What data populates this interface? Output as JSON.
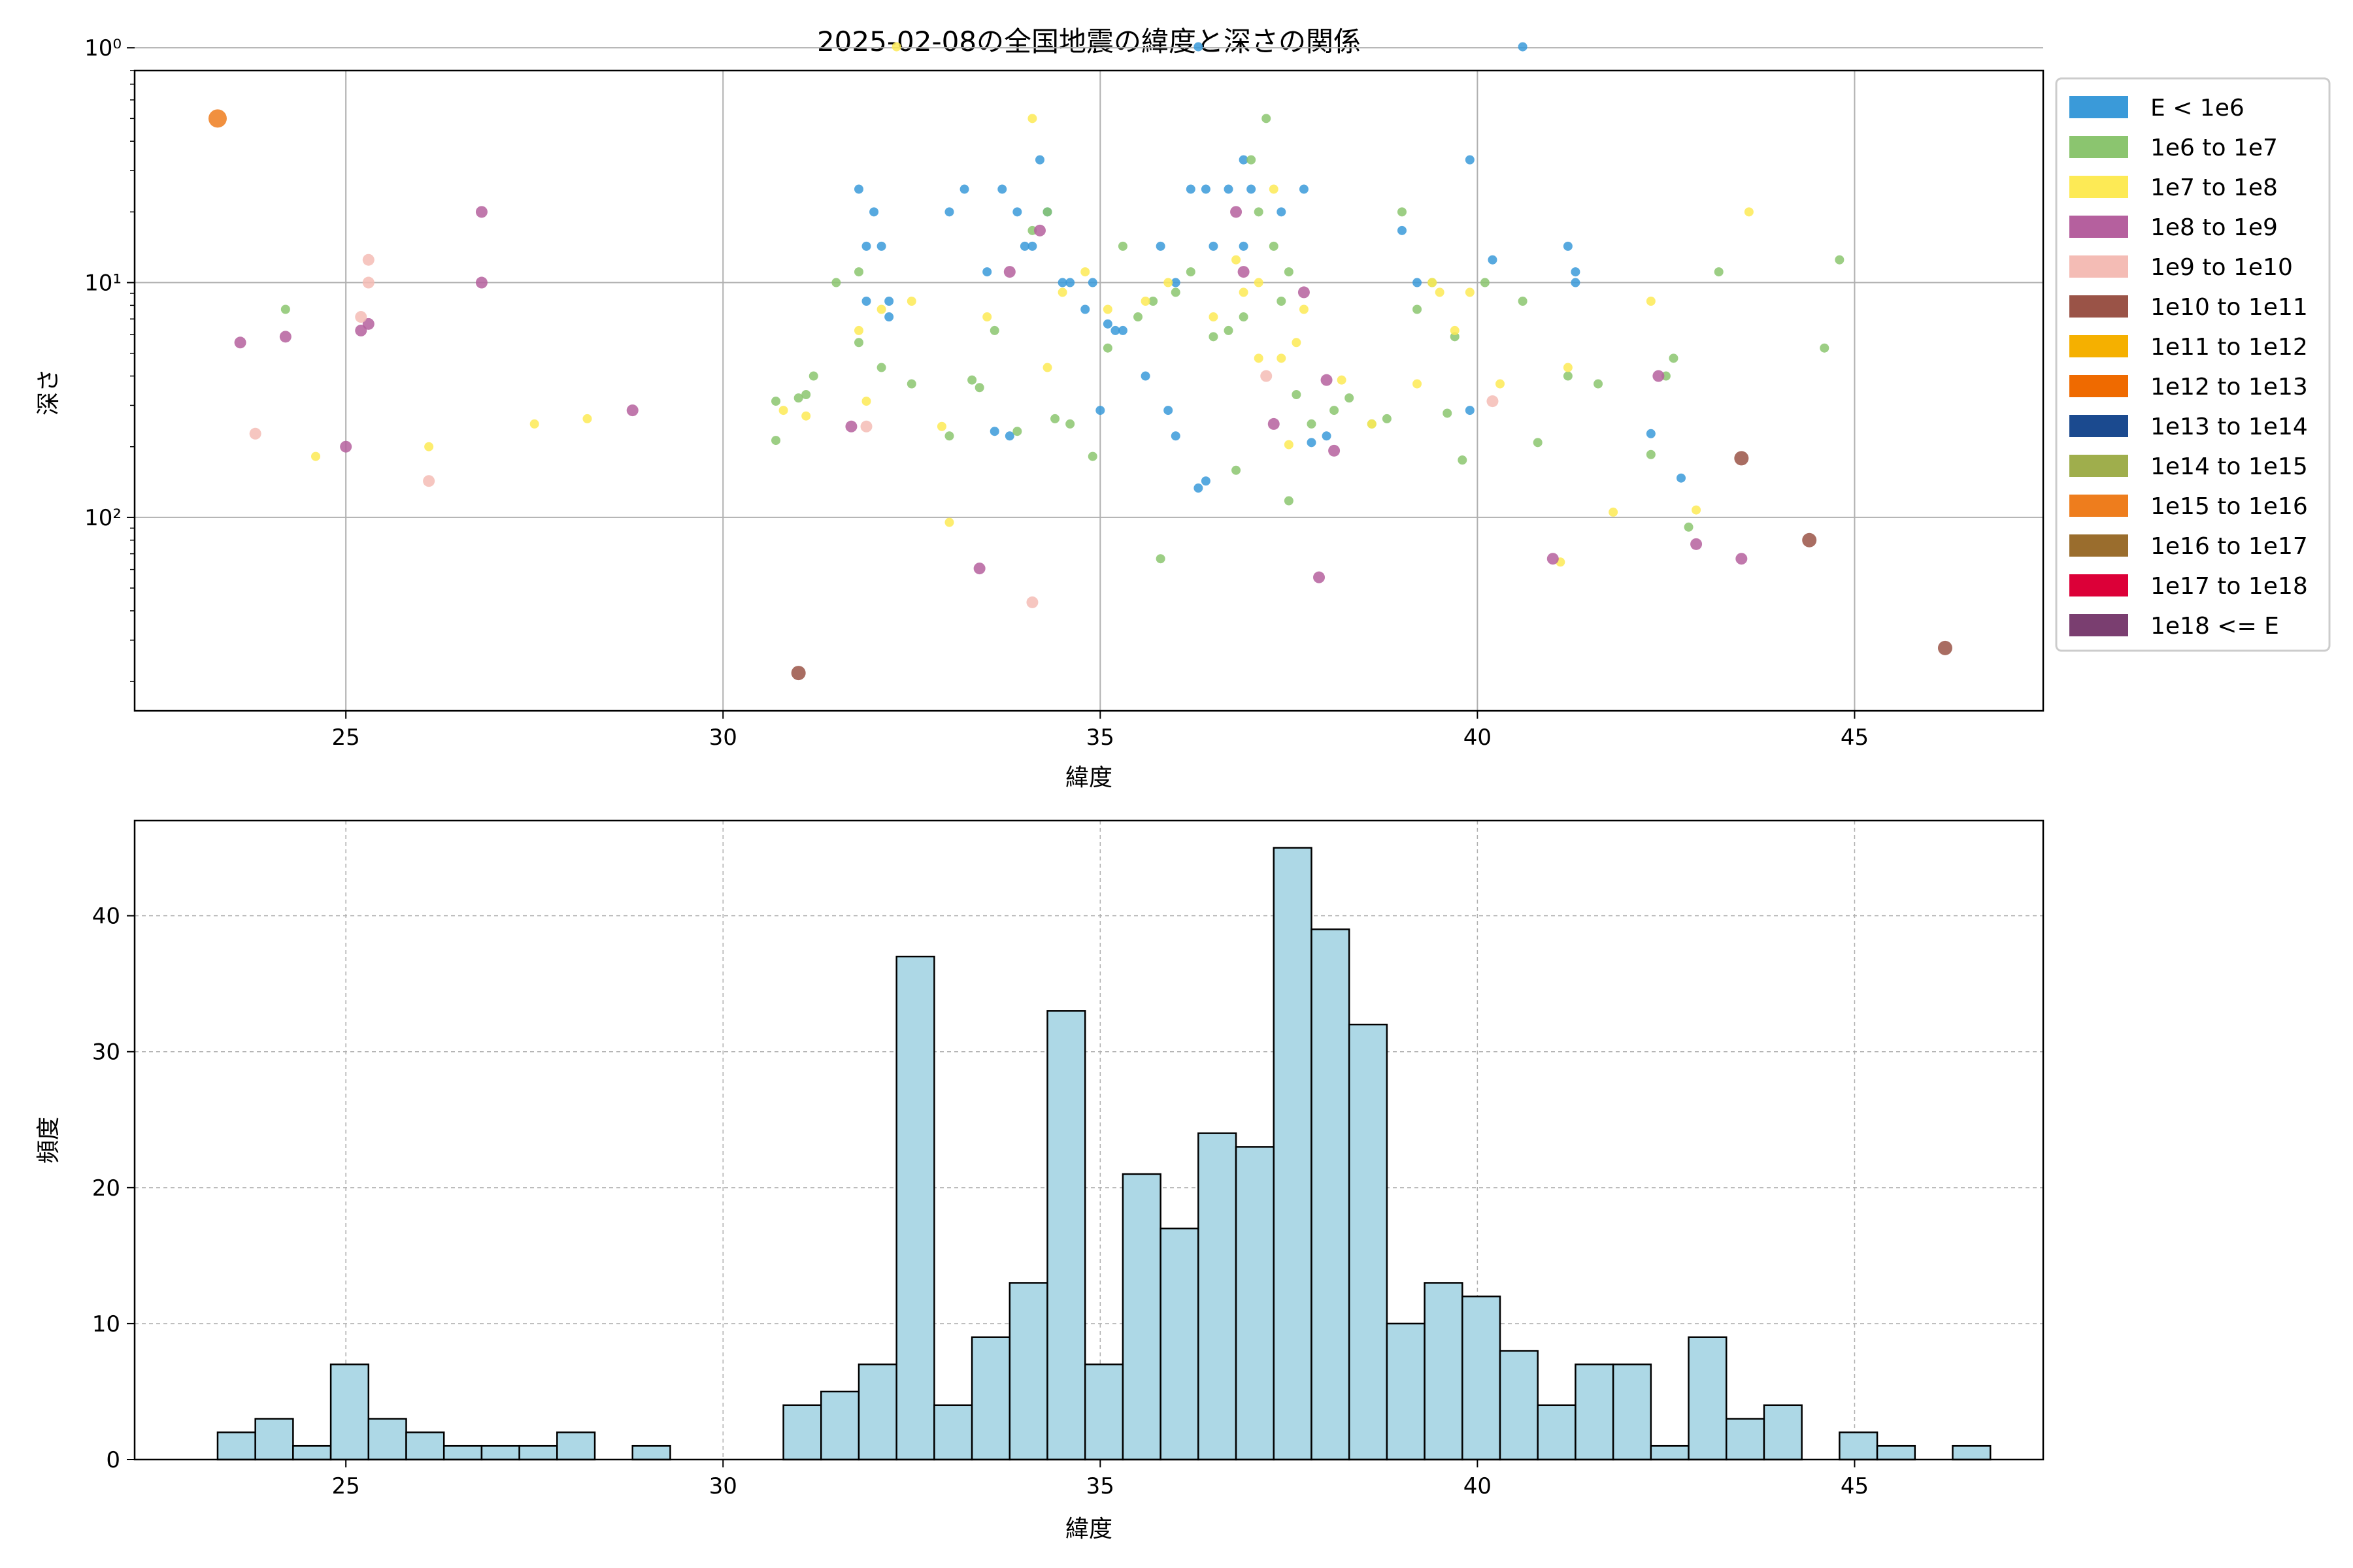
{
  "chart_data": [
    {
      "type": "scatter",
      "title": "2025-02-08の全国地震の緯度と深さの関係",
      "xlabel": "緯度",
      "ylabel": "深さ",
      "xlim": [
        22.2,
        47.5
      ],
      "ylim_log": [
        0.8,
        0.0015
      ],
      "y_scale": "log",
      "y_inverted": true,
      "xticks": [
        25,
        30,
        35,
        40,
        45
      ],
      "yticks": [
        {
          "value": 1,
          "label": "10⁰"
        },
        {
          "value": 0.1,
          "label": "10¹"
        },
        {
          "value": 0.01,
          "label": "10²"
        }
      ],
      "grid": true,
      "legend_position": "outside right",
      "legend": [
        {
          "label": "E < 1e6",
          "color": "#3a9ad9"
        },
        {
          "label": "1e6 to 1e7",
          "color": "#8bc56f"
        },
        {
          "label": "1e7 to 1e8",
          "color": "#fdea55"
        },
        {
          "label": "1e8 to 1e9",
          "color": "#b5609e"
        },
        {
          "label": "1e9 to 1e10",
          "color": "#f4bcb5"
        },
        {
          "label": "1e10 to 1e11",
          "color": "#9a5347"
        },
        {
          "label": "1e11 to 1e12",
          "color": "#f5b000"
        },
        {
          "label": "1e12 to 1e13",
          "color": "#ef6a00"
        },
        {
          "label": "1e13 to 1e14",
          "color": "#1b4a8f"
        },
        {
          "label": "1e14 to 1e15",
          "color": "#9fae4c"
        },
        {
          "label": "1e15 to 1e16",
          "color": "#ee7d1d"
        },
        {
          "label": "1e16 to 1e17",
          "color": "#9a6d2d"
        },
        {
          "label": "1e17 to 1e18",
          "color": "#dc0038"
        },
        {
          "label": "1e18 <= E",
          "color": "#7a3e70"
        }
      ],
      "series": [
        {
          "name": "E < 1e6",
          "color": "#3a9ad9",
          "points": [
            [
              31.8,
              4
            ],
            [
              31.9,
              7
            ],
            [
              32.0,
              5
            ],
            [
              32.1,
              7
            ],
            [
              32.2,
              12
            ],
            [
              31.9,
              12
            ],
            [
              32.2,
              14
            ],
            [
              33.0,
              5
            ],
            [
              33.2,
              4
            ],
            [
              33.5,
              9
            ],
            [
              33.9,
              5
            ],
            [
              34.0,
              7
            ],
            [
              34.1,
              7
            ],
            [
              34.2,
              3
            ],
            [
              34.3,
              5
            ],
            [
              34.5,
              10
            ],
            [
              34.9,
              10
            ],
            [
              35.1,
              15
            ],
            [
              35.3,
              16
            ],
            [
              35.6,
              25
            ],
            [
              35.8,
              7
            ],
            [
              36.0,
              10
            ],
            [
              36.2,
              4
            ],
            [
              36.4,
              4
            ],
            [
              36.3,
              0.99
            ],
            [
              36.5,
              7
            ],
            [
              36.7,
              4
            ],
            [
              36.9,
              7
            ],
            [
              36.9,
              3
            ],
            [
              37.0,
              4
            ],
            [
              37.4,
              5
            ],
            [
              37.7,
              4
            ],
            [
              37.8,
              48
            ],
            [
              38.0,
              45
            ],
            [
              35.9,
              35
            ],
            [
              36.0,
              45
            ],
            [
              36.4,
              70
            ],
            [
              36.3,
              75
            ],
            [
              35.0,
              35
            ],
            [
              35.2,
              16
            ],
            [
              34.8,
              13
            ],
            [
              34.6,
              10
            ],
            [
              39.0,
              6
            ],
            [
              39.2,
              10
            ],
            [
              39.9,
              3
            ],
            [
              39.9,
              35
            ],
            [
              40.2,
              8
            ],
            [
              40.6,
              0.99
            ],
            [
              41.2,
              7
            ],
            [
              41.3,
              9
            ],
            [
              41.3,
              10
            ],
            [
              42.3,
              44
            ],
            [
              42.7,
              68
            ],
            [
              33.7,
              4
            ],
            [
              33.6,
              43
            ],
            [
              33.8,
              45
            ]
          ]
        },
        {
          "name": "1e6 to 1e7",
          "color": "#8bc56f",
          "points": [
            [
              24.2,
              13
            ],
            [
              30.7,
              32
            ],
            [
              30.7,
              47
            ],
            [
              31.0,
              31
            ],
            [
              31.1,
              30
            ],
            [
              31.2,
              25
            ],
            [
              31.5,
              10
            ],
            [
              31.8,
              9
            ],
            [
              31.8,
              18
            ],
            [
              32.1,
              23
            ],
            [
              32.5,
              27
            ],
            [
              33.0,
              45
            ],
            [
              33.3,
              26
            ],
            [
              33.4,
              28
            ],
            [
              33.6,
              16
            ],
            [
              33.9,
              43
            ],
            [
              34.1,
              6
            ],
            [
              34.3,
              5
            ],
            [
              34.4,
              38
            ],
            [
              34.6,
              40
            ],
            [
              34.9,
              55
            ],
            [
              35.1,
              19
            ],
            [
              35.3,
              7
            ],
            [
              35.5,
              14
            ],
            [
              35.7,
              12
            ],
            [
              35.8,
              150
            ],
            [
              36.0,
              11
            ],
            [
              36.2,
              9
            ],
            [
              36.5,
              17
            ],
            [
              36.7,
              16
            ],
            [
              36.8,
              63
            ],
            [
              37.0,
              3
            ],
            [
              37.1,
              5
            ],
            [
              37.2,
              2
            ],
            [
              37.3,
              7
            ],
            [
              37.5,
              9
            ],
            [
              37.6,
              30
            ],
            [
              37.8,
              40
            ],
            [
              38.1,
              35
            ],
            [
              38.3,
              31
            ],
            [
              38.6,
              40
            ],
            [
              38.8,
              38
            ],
            [
              39.0,
              5
            ],
            [
              39.2,
              13
            ],
            [
              39.4,
              10
            ],
            [
              39.6,
              36
            ],
            [
              39.7,
              17
            ],
            [
              39.8,
              57
            ],
            [
              40.1,
              10
            ],
            [
              40.6,
              12
            ],
            [
              40.8,
              48
            ],
            [
              41.2,
              25
            ],
            [
              41.6,
              27
            ],
            [
              42.3,
              54
            ],
            [
              42.5,
              25
            ],
            [
              42.6,
              21
            ],
            [
              42.8,
              110
            ],
            [
              43.2,
              9
            ],
            [
              44.6,
              19
            ],
            [
              44.8,
              8
            ],
            [
              37.5,
              85
            ],
            [
              37.4,
              12
            ],
            [
              36.9,
              14
            ]
          ]
        },
        {
          "name": "1e7 to 1e8",
          "color": "#fdea55",
          "points": [
            [
              24.6,
              55
            ],
            [
              26.1,
              50
            ],
            [
              27.5,
              40
            ],
            [
              28.2,
              38
            ],
            [
              30.8,
              35
            ],
            [
              31.1,
              37
            ],
            [
              31.9,
              32
            ],
            [
              31.8,
              16
            ],
            [
              32.1,
              13
            ],
            [
              32.3,
              0.99
            ],
            [
              32.5,
              12
            ],
            [
              32.9,
              41
            ],
            [
              33.0,
              105
            ],
            [
              33.5,
              14
            ],
            [
              34.1,
              2
            ],
            [
              34.3,
              23
            ],
            [
              34.5,
              11
            ],
            [
              34.8,
              9
            ],
            [
              35.1,
              13
            ],
            [
              35.6,
              12
            ],
            [
              35.9,
              10
            ],
            [
              36.5,
              14
            ],
            [
              36.8,
              8
            ],
            [
              36.9,
              11
            ],
            [
              37.1,
              10
            ],
            [
              37.3,
              4
            ],
            [
              37.4,
              21
            ],
            [
              37.6,
              18
            ],
            [
              37.7,
              13
            ],
            [
              38.2,
              26
            ],
            [
              38.6,
              40
            ],
            [
              39.2,
              27
            ],
            [
              39.4,
              10
            ],
            [
              39.5,
              11
            ],
            [
              39.7,
              16
            ],
            [
              39.9,
              11
            ],
            [
              40.3,
              27
            ],
            [
              41.2,
              23
            ],
            [
              41.8,
              95
            ],
            [
              42.3,
              12
            ],
            [
              42.9,
              93
            ],
            [
              43.6,
              5
            ],
            [
              41.1,
              155
            ],
            [
              37.1,
              21
            ],
            [
              37.5,
              49
            ]
          ]
        },
        {
          "name": "1e8 to 1e9",
          "color": "#b5609e",
          "points": [
            [
              23.6,
              18
            ],
            [
              24.2,
              17
            ],
            [
              25.0,
              50
            ],
            [
              25.2,
              16
            ],
            [
              25.3,
              15
            ],
            [
              26.8,
              5
            ],
            [
              26.8,
              10
            ],
            [
              28.8,
              35
            ],
            [
              31.7,
              41
            ],
            [
              33.4,
              165
            ],
            [
              33.8,
              9
            ],
            [
              34.2,
              6
            ],
            [
              36.8,
              5
            ],
            [
              36.9,
              9
            ],
            [
              37.3,
              40
            ],
            [
              37.7,
              11
            ],
            [
              38.0,
              26
            ],
            [
              38.1,
              52
            ],
            [
              37.9,
              180
            ],
            [
              41.0,
              150
            ],
            [
              42.4,
              25
            ],
            [
              42.9,
              130
            ],
            [
              43.5,
              150
            ]
          ]
        },
        {
          "name": "1e9 to 1e10",
          "color": "#f4bcb5",
          "points": [
            [
              23.8,
              44
            ],
            [
              25.3,
              8
            ],
            [
              25.3,
              10
            ],
            [
              25.2,
              14
            ],
            [
              26.1,
              70
            ],
            [
              31.9,
              41
            ],
            [
              34.1,
              230
            ],
            [
              37.2,
              25
            ],
            [
              40.2,
              32
            ]
          ]
        },
        {
          "name": "1e10 to 1e11",
          "color": "#9a5347",
          "points": [
            [
              31.0,
              460
            ],
            [
              43.5,
              56
            ],
            [
              44.4,
              125
            ],
            [
              46.2,
              360
            ]
          ]
        },
        {
          "name": "1e15 to 1e16",
          "color": "#ee7d1d",
          "points": [
            [
              23.3,
              2
            ]
          ]
        }
      ]
    },
    {
      "type": "bar",
      "title": "",
      "xlabel": "緯度",
      "ylabel": "頻度",
      "xlim": [
        22.2,
        47.5
      ],
      "ylim": [
        0,
        47
      ],
      "xticks": [
        25,
        30,
        35,
        40,
        45
      ],
      "yticks": [
        0,
        10,
        20,
        30,
        40
      ],
      "grid": true,
      "bar_color": "#add8e6",
      "bin_start": 23.3,
      "bin_width": 0.5,
      "values": [
        2,
        3,
        1,
        7,
        3,
        2,
        1,
        1,
        1,
        2,
        0,
        1,
        0,
        0,
        0,
        4,
        5,
        7,
        37,
        4,
        9,
        13,
        33,
        7,
        21,
        17,
        24,
        23,
        45,
        39,
        32,
        10,
        13,
        12,
        8,
        4,
        7,
        7,
        1,
        9,
        3,
        4,
        0,
        2,
        1,
        0,
        1
      ]
    }
  ]
}
